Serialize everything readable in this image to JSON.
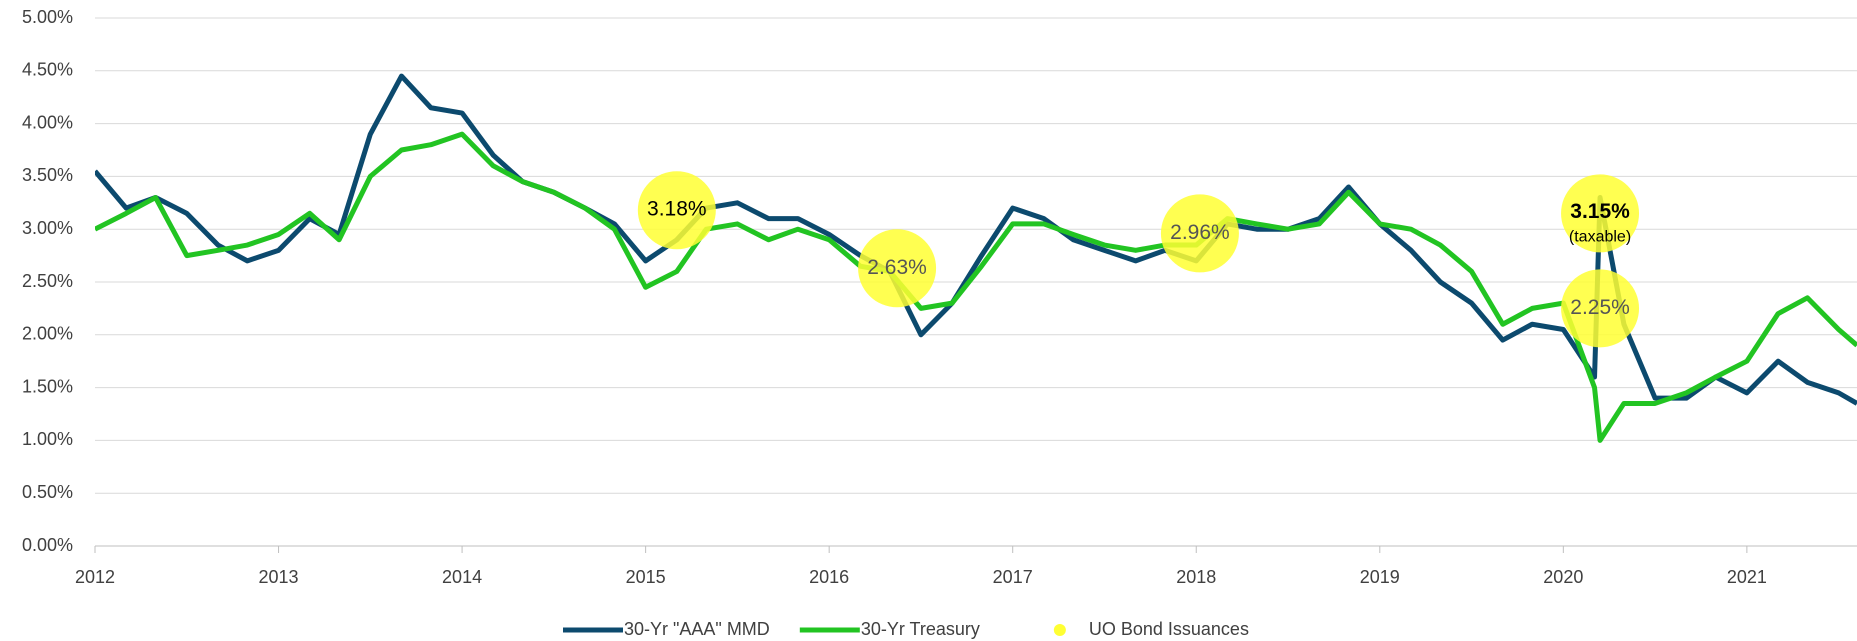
{
  "chart_data": {
    "type": "line",
    "x": [
      2012,
      2012.17,
      2012.33,
      2012.5,
      2012.67,
      2012.83,
      2013,
      2013.17,
      2013.33,
      2013.5,
      2013.67,
      2013.83,
      2014,
      2014.17,
      2014.33,
      2014.5,
      2014.67,
      2014.83,
      2015,
      2015.17,
      2015.33,
      2015.5,
      2015.67,
      2015.83,
      2016,
      2016.17,
      2016.33,
      2016.5,
      2016.67,
      2016.83,
      2017,
      2017.17,
      2017.33,
      2017.5,
      2017.67,
      2017.83,
      2018,
      2018.17,
      2018.33,
      2018.5,
      2018.67,
      2018.83,
      2019,
      2019.17,
      2019.33,
      2019.5,
      2019.67,
      2019.83,
      2020,
      2020.17,
      2020.2,
      2020.33,
      2020.5,
      2020.67,
      2020.83,
      2021,
      2021.17,
      2021.33,
      2021.5,
      2021.6
    ],
    "series": [
      {
        "name": "30-Yr \"AAA\" MMD",
        "color": "#0c4a6e",
        "values": [
          3.55,
          3.2,
          3.3,
          3.15,
          2.85,
          2.7,
          2.8,
          3.1,
          2.95,
          3.9,
          4.45,
          4.15,
          4.1,
          3.7,
          3.45,
          3.35,
          3.2,
          3.05,
          2.7,
          2.9,
          3.2,
          3.25,
          3.1,
          3.1,
          2.95,
          2.75,
          2.6,
          2.0,
          2.3,
          2.75,
          3.2,
          3.1,
          2.9,
          2.8,
          2.7,
          2.8,
          2.7,
          3.05,
          3.0,
          3.0,
          3.1,
          3.4,
          3.05,
          2.8,
          2.5,
          2.3,
          1.95,
          2.1,
          2.05,
          1.6,
          3.3,
          2.1,
          1.4,
          1.4,
          1.6,
          1.45,
          1.75,
          1.55,
          1.45,
          1.35
        ]
      },
      {
        "name": "30-Yr Treasury",
        "color": "#22c422",
        "values": [
          3.0,
          3.15,
          3.3,
          2.75,
          2.8,
          2.85,
          2.95,
          3.15,
          2.9,
          3.5,
          3.75,
          3.8,
          3.9,
          3.6,
          3.45,
          3.35,
          3.2,
          3.0,
          2.45,
          2.6,
          3.0,
          3.05,
          2.9,
          3.0,
          2.9,
          2.65,
          2.6,
          2.25,
          2.3,
          2.65,
          3.05,
          3.05,
          2.95,
          2.85,
          2.8,
          2.85,
          2.85,
          3.1,
          3.05,
          3.0,
          3.05,
          3.35,
          3.05,
          3.0,
          2.85,
          2.6,
          2.1,
          2.25,
          2.3,
          1.5,
          1.0,
          1.35,
          1.35,
          1.45,
          1.6,
          1.75,
          2.2,
          2.35,
          2.05,
          1.9
        ]
      },
      {
        "name": "UO Bond Issuances",
        "type": "scatter",
        "color": "#ffff33",
        "x": [
          2015.17,
          2016.37,
          2018.02,
          2020.2,
          2020.2
        ],
        "values": [
          3.18,
          2.63,
          2.96,
          3.15,
          2.25
        ],
        "value_labels": [
          "3.18%",
          "2.63%",
          "2.96%",
          "3.15%",
          "2.25%"
        ]
      }
    ],
    "annotations": [
      {
        "text": "(taxable)",
        "x": 2020.2,
        "y": 3.15
      }
    ],
    "xlim": [
      2012,
      2021.6
    ],
    "xticks": [
      2012,
      2013,
      2014,
      2015,
      2016,
      2017,
      2018,
      2019,
      2020,
      2021
    ],
    "ylim": [
      0,
      5
    ],
    "yticks": [
      {
        "value": 0,
        "label": "0.00%"
      },
      {
        "value": 0.5,
        "label": "0.50%"
      },
      {
        "value": 1,
        "label": "1.00%"
      },
      {
        "value": 1.5,
        "label": "1.50%"
      },
      {
        "value": 2,
        "label": "2.00%"
      },
      {
        "value": 2.5,
        "label": "2.50%"
      },
      {
        "value": 3,
        "label": "3.00%"
      },
      {
        "value": 3.5,
        "label": "3.50%"
      },
      {
        "value": 4,
        "label": "4.00%"
      },
      {
        "value": 4.5,
        "label": "4.50%"
      },
      {
        "value": 5,
        "label": "5.00%"
      }
    ],
    "grid": true,
    "legend": "bottom"
  }
}
